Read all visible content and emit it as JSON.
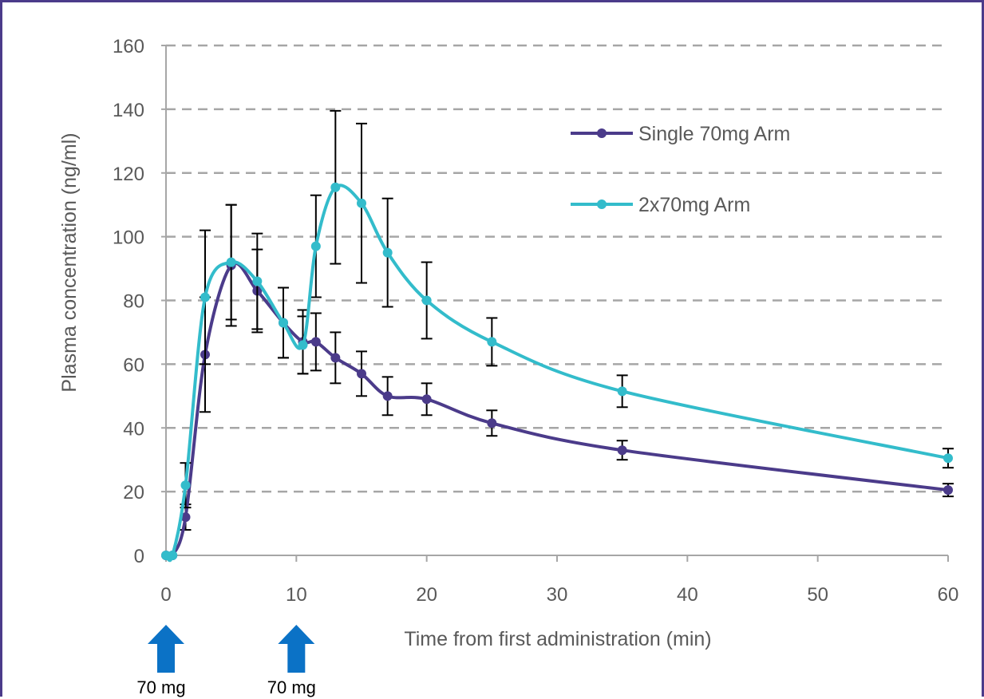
{
  "chart_data": {
    "type": "line",
    "xlabel": "Time from first administration (min)",
    "ylabel": "Plasma concentration (ng/ml)",
    "xlim": [
      0,
      60
    ],
    "ylim": [
      0,
      160
    ],
    "xticks": [
      0,
      10,
      20,
      30,
      40,
      50,
      60
    ],
    "yticks": [
      0,
      20,
      40,
      60,
      80,
      100,
      120,
      140,
      160
    ],
    "grid": "horizontal dashed",
    "legend_position": "upper-right",
    "series": [
      {
        "name": "Single 70mg Arm",
        "color": "#4b3b8a",
        "points": [
          {
            "x": 0,
            "y": 0,
            "err": 0
          },
          {
            "x": 0.5,
            "y": 0,
            "err": 0
          },
          {
            "x": 1.5,
            "y": 12,
            "err": 4
          },
          {
            "x": 3,
            "y": 63,
            "err": 18
          },
          {
            "x": 5,
            "y": 91,
            "err": 19
          },
          {
            "x": 7,
            "y": 83,
            "err": 13
          },
          {
            "x": 9,
            "y": 73,
            "err": 11
          },
          {
            "x": 10.5,
            "y": 67,
            "err": 10
          },
          {
            "x": 11.5,
            "y": 67,
            "err": 9
          },
          {
            "x": 13,
            "y": 62,
            "err": 8
          },
          {
            "x": 15,
            "y": 57,
            "err": 7
          },
          {
            "x": 17,
            "y": 50,
            "err": 6
          },
          {
            "x": 20,
            "y": 49,
            "err": 5
          },
          {
            "x": 25,
            "y": 41.5,
            "err": 4
          },
          {
            "x": 35,
            "y": 33,
            "err": 3
          },
          {
            "x": 60,
            "y": 20.5,
            "err": 2
          }
        ]
      },
      {
        "name": "2x70mg Arm",
        "color": "#33bccb",
        "points": [
          {
            "x": 0,
            "y": 0,
            "err": 0
          },
          {
            "x": 0.5,
            "y": 0,
            "err": 0
          },
          {
            "x": 1.5,
            "y": 22,
            "err": 7
          },
          {
            "x": 3,
            "y": 81,
            "err": 21
          },
          {
            "x": 5,
            "y": 92,
            "err": 18
          },
          {
            "x": 7,
            "y": 86,
            "err": 15
          },
          {
            "x": 9,
            "y": 73,
            "err": 11
          },
          {
            "x": 10.5,
            "y": 66,
            "err": 9
          },
          {
            "x": 11.5,
            "y": 97,
            "err": 16
          },
          {
            "x": 13,
            "y": 115.5,
            "err": 24
          },
          {
            "x": 15,
            "y": 110.5,
            "err": 25
          },
          {
            "x": 17,
            "y": 95,
            "err": 17
          },
          {
            "x": 20,
            "y": 80,
            "err": 12
          },
          {
            "x": 25,
            "y": 67,
            "err": 7.5
          },
          {
            "x": 35,
            "y": 51.5,
            "err": 5
          },
          {
            "x": 60,
            "y": 30.5,
            "err": 3
          }
        ]
      }
    ],
    "annotations": [
      {
        "type": "arrow",
        "x": 0,
        "label": "70 mg",
        "color": "#0b72c6"
      },
      {
        "type": "arrow",
        "x": 10,
        "label": "70 mg",
        "color": "#0b72c6"
      }
    ]
  }
}
